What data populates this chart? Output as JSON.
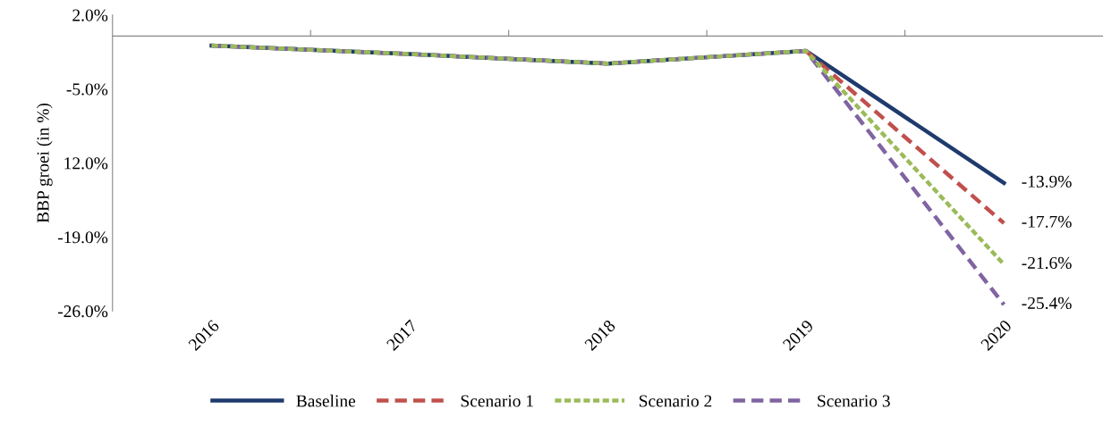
{
  "chart_data": {
    "type": "line",
    "ylabel": "BBP groei (in %)",
    "categories": [
      "2016",
      "2017",
      "2018",
      "2019",
      "2020"
    ],
    "series": [
      {
        "name": "Baseline",
        "color": "#1f3b6e",
        "line_style": "solid",
        "values": [
          -0.9,
          -1.7,
          -2.6,
          -1.4,
          -13.9
        ],
        "value_labels": [
          null,
          null,
          null,
          null,
          "-13.9%"
        ]
      },
      {
        "name": "Scenario 1",
        "color": "#c0504d",
        "line_style": "dashed",
        "values": [
          null,
          null,
          null,
          -1.4,
          -17.7
        ],
        "value_labels": [
          null,
          null,
          null,
          null,
          "-17.7%"
        ]
      },
      {
        "name": "Scenario 2",
        "color": "#9bbb59",
        "line_style": "dotted",
        "values": [
          -0.9,
          -1.7,
          -2.6,
          -1.4,
          -21.6
        ],
        "value_labels": [
          null,
          null,
          null,
          null,
          "-21.6%"
        ]
      },
      {
        "name": "Scenario 3",
        "color": "#8064a2",
        "line_style": "dashed",
        "values": [
          -0.9,
          -1.7,
          -2.6,
          -1.4,
          -25.4
        ],
        "value_labels": [
          null,
          null,
          null,
          null,
          "-25.4%"
        ]
      }
    ],
    "ylim": [
      -26,
      2
    ],
    "yticks": [
      {
        "value": 2,
        "label": "2.0%"
      },
      {
        "value": -5,
        "label": "-5.0%"
      },
      {
        "value": -12,
        "label": "12.0%"
      },
      {
        "value": -19,
        "label": "-19.0%"
      },
      {
        "value": -26,
        "label": "-26.0%"
      }
    ],
    "grid": false,
    "legend": "bottom",
    "marker": "none"
  }
}
